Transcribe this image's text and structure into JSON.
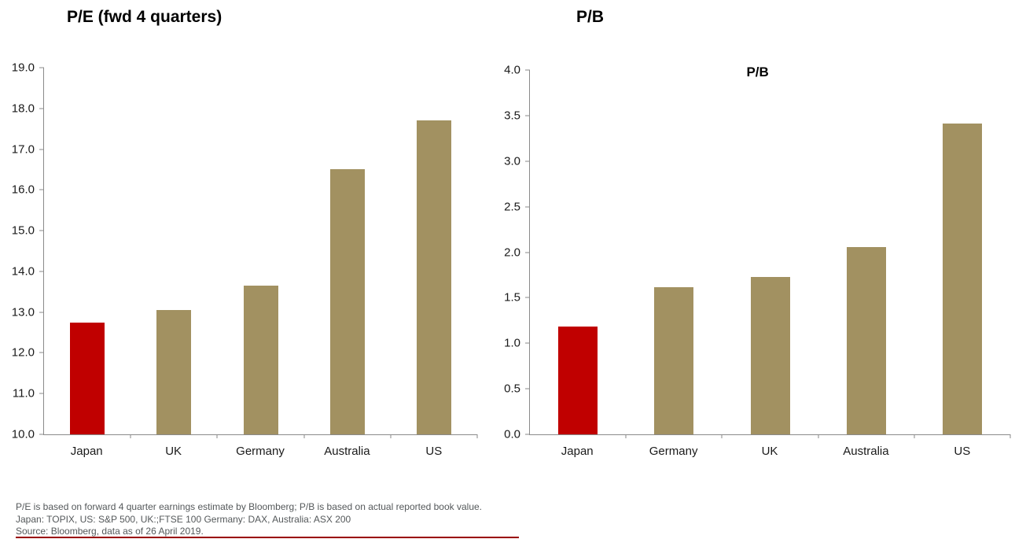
{
  "chart_data": [
    {
      "type": "bar",
      "title": "P/E (fwd 4 quarters)",
      "categories": [
        "Japan",
        "UK",
        "Germany",
        "Australia",
        "US"
      ],
      "values": [
        12.75,
        13.05,
        13.65,
        16.5,
        17.7
      ],
      "ylim": [
        10.0,
        19.0
      ],
      "ytick_step": 1.0,
      "ytick_decimals": 1,
      "bar_colors": [
        "#c00000",
        "#a29161",
        "#a29161",
        "#a29161",
        "#a29161"
      ],
      "grid": false,
      "legend": "none",
      "xlabel": "",
      "ylabel": ""
    },
    {
      "type": "bar",
      "title": "P/B",
      "inner_label": "P/B",
      "categories": [
        "Japan",
        "Germany",
        "UK",
        "Australia",
        "US"
      ],
      "values": [
        1.18,
        1.62,
        1.73,
        2.06,
        3.41
      ],
      "ylim": [
        0.0,
        4.0
      ],
      "ytick_step": 0.5,
      "ytick_decimals": 1,
      "bar_colors": [
        "#c00000",
        "#a29161",
        "#a29161",
        "#a29161",
        "#a29161"
      ],
      "grid": false,
      "legend": "none",
      "xlabel": "",
      "ylabel": ""
    }
  ],
  "footer": {
    "lines": [
      "P/E is based on forward 4 quarter earnings estimate by Bloomberg; P/B is based on actual reported book value.",
      "Japan: TOPIX, US: S&P 500, UK:;FTSE 100 Germany: DAX, Australia: ASX 200",
      "Source: Bloomberg, data as of 26 April 2019."
    ],
    "rule_color": "#990000"
  },
  "colors": {
    "highlight_bar": "#c00000",
    "default_bar": "#a29161",
    "axis": "#8a8a8a",
    "footer_text": "#54585a"
  }
}
